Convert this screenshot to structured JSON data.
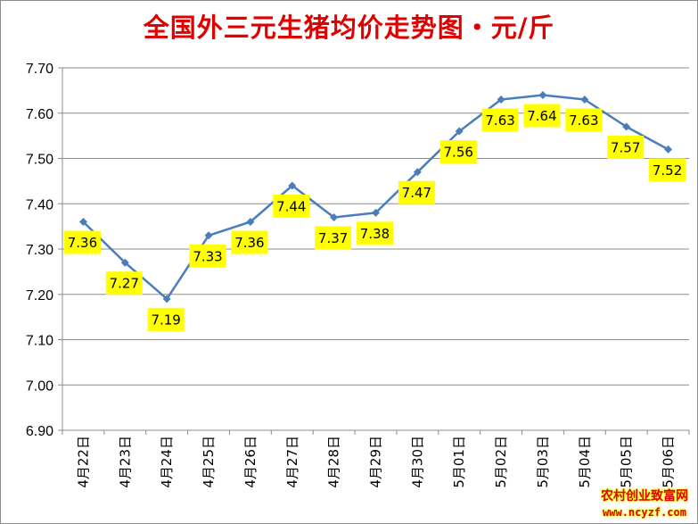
{
  "chart_data": {
    "type": "line",
    "title": "全国外三元生猪均价走势图・元/斤",
    "categories": [
      "4月22日",
      "4月23日",
      "4月24日",
      "4月25日",
      "4月26日",
      "4月27日",
      "4月28日",
      "4月29日",
      "4月30日",
      "5月01日",
      "5月02日",
      "5月03日",
      "5月04日",
      "5月05日",
      "5月06日"
    ],
    "values": [
      7.36,
      7.27,
      7.19,
      7.33,
      7.36,
      7.44,
      7.37,
      7.38,
      7.47,
      7.56,
      7.63,
      7.64,
      7.63,
      7.57,
      7.52
    ],
    "value_labels": [
      "7.36",
      "7.27",
      "7.19",
      "7.33",
      "7.36",
      "7.44",
      "7.37",
      "7.38",
      "7.47",
      "7.56",
      "7.63",
      "7.64",
      "7.63",
      "7.57",
      "7.52"
    ],
    "ylim": [
      6.9,
      7.7
    ],
    "yticks": [
      "6.90",
      "7.00",
      "7.10",
      "7.20",
      "7.30",
      "7.40",
      "7.50",
      "7.60",
      "7.70"
    ],
    "grid": true,
    "line_color": "#4a7ebb",
    "label_bg": "#ffff00"
  },
  "watermark": {
    "line1": "农村创业致富网",
    "line2": "www.ncyzf.com"
  }
}
